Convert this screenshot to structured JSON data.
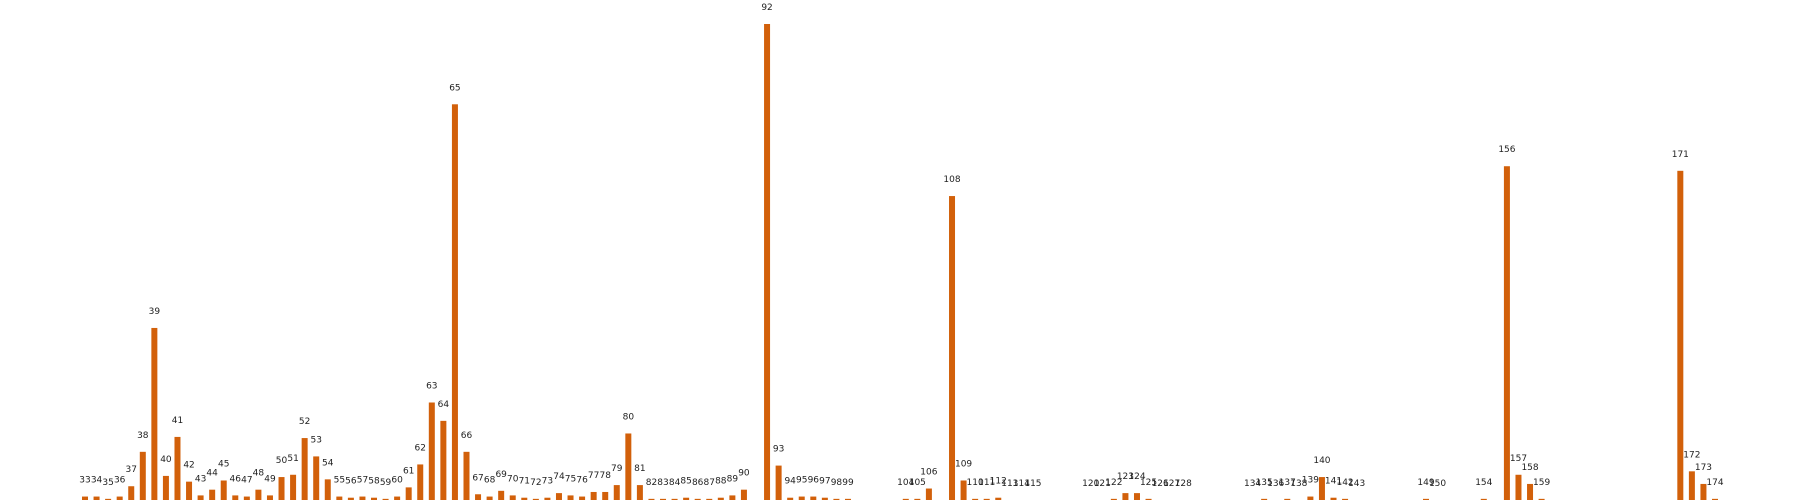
{
  "chart_data": {
    "type": "bar",
    "x": [
      33,
      34,
      35,
      36,
      37,
      38,
      39,
      40,
      41,
      42,
      43,
      44,
      45,
      46,
      47,
      48,
      49,
      50,
      51,
      52,
      53,
      54,
      55,
      56,
      57,
      58,
      59,
      60,
      61,
      62,
      63,
      64,
      65,
      66,
      67,
      68,
      69,
      70,
      71,
      72,
      73,
      74,
      75,
      76,
      77,
      78,
      79,
      80,
      81,
      82,
      83,
      84,
      85,
      86,
      87,
      88,
      89,
      90,
      92,
      93,
      94,
      95,
      96,
      97,
      98,
      99,
      104,
      105,
      106,
      108,
      109,
      110,
      111,
      112,
      113,
      114,
      115,
      120,
      121,
      122,
      123,
      124,
      125,
      126,
      127,
      128,
      134,
      135,
      136,
      137,
      138,
      139,
      140,
      141,
      142,
      143,
      149,
      150,
      154,
      156,
      157,
      158,
      159,
      171,
      172,
      173,
      174
    ],
    "values": [
      3,
      3,
      1,
      3,
      12,
      42,
      150,
      21,
      55,
      16,
      4,
      9,
      17,
      4,
      3,
      9,
      4,
      20,
      22,
      54,
      38,
      18,
      3,
      2,
      3,
      2,
      1,
      3,
      11,
      31,
      85,
      69,
      345,
      42,
      5,
      3,
      8,
      4,
      2,
      1,
      2,
      6,
      4,
      3,
      7,
      7,
      13,
      58,
      13,
      1,
      1,
      1,
      2,
      1,
      1,
      2,
      4,
      9,
      415,
      30,
      2,
      3,
      3,
      2,
      1,
      1,
      1,
      1,
      10,
      265,
      17,
      1,
      1,
      2,
      0,
      0,
      0,
      0,
      0,
      1,
      6,
      6,
      1,
      0,
      0,
      0,
      0,
      1,
      0,
      1,
      0,
      3,
      20,
      2,
      1,
      0,
      1,
      0,
      1,
      291,
      22,
      14,
      1,
      287,
      25,
      14,
      1
    ],
    "color": "#d2600a",
    "xlim": [
      33,
      174
    ],
    "ylim": [
      0,
      415
    ]
  }
}
